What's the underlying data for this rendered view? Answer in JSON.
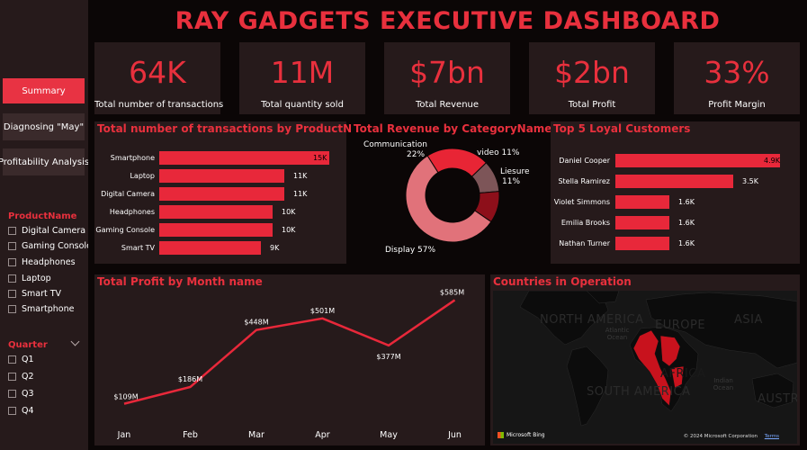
{
  "header": {
    "title": "RAY GADGETS EXECUTIVE DASHBOARD"
  },
  "nav": [
    {
      "label": "Summary",
      "active": true
    },
    {
      "label": "Diagnosing \"May\"",
      "active": false
    },
    {
      "label": "Profitability Analysis",
      "active": false
    }
  ],
  "slicers": {
    "product": {
      "title": "ProductName",
      "items": [
        "Digital Camera",
        "Gaming Console",
        "Headphones",
        "Laptop",
        "Smart TV",
        "Smartphone"
      ]
    },
    "quarter": {
      "title": "Quarter",
      "items": [
        "Q1",
        "Q2",
        "Q3",
        "Q4"
      ]
    }
  },
  "kpis": [
    {
      "value": "64K",
      "label": "Total number of transactions"
    },
    {
      "value": "11M",
      "label": "Total quantity sold"
    },
    {
      "value": "$7bn",
      "label": "Total Revenue"
    },
    {
      "value": "$2bn",
      "label": "Total Profit"
    },
    {
      "value": "33%",
      "label": "Profit Margin"
    }
  ],
  "colors": {
    "accent": "#e8303d",
    "panel": "#261a1b",
    "bar": "#e8283a"
  },
  "chart_data": [
    {
      "type": "bar",
      "orientation": "horizontal",
      "title": "Total number of transactions by ProductName",
      "categories": [
        "Smartphone",
        "Laptop",
        "Digital Camera",
        "Headphones",
        "Gaming Console",
        "Smart TV"
      ],
      "values": [
        15000,
        11000,
        11000,
        10000,
        10000,
        9000
      ],
      "data_labels": [
        "15K",
        "11K",
        "11K",
        "10K",
        "10K",
        "9K"
      ]
    },
    {
      "type": "pie",
      "style": "donut",
      "title": "Total Revenue by CategoryName",
      "slices": [
        {
          "name": "Communication",
          "label": "22%",
          "value": 22,
          "color": "#e82535"
        },
        {
          "name": "video",
          "label": "11%",
          "value": 11,
          "color": "#7d5558"
        },
        {
          "name": "Liesure",
          "label": "11%",
          "value": 11,
          "color": "#8d0f1a"
        },
        {
          "name": "Display",
          "label": "57%",
          "value": 57,
          "color": "#e1727a"
        }
      ]
    },
    {
      "type": "bar",
      "orientation": "horizontal",
      "title": "Top 5 Loyal Customers",
      "categories": [
        "Daniel Cooper",
        "Stella Ramirez",
        "Violet Simmons",
        "Emilia Brooks",
        "Nathan Turner"
      ],
      "values": [
        4900,
        3500,
        1600,
        1600,
        1600
      ],
      "data_labels": [
        "4.9K",
        "3.5K",
        "1.6K",
        "1.6K",
        "1.6K"
      ]
    },
    {
      "type": "line",
      "title": "Total Profit by Month name",
      "categories": [
        "Jan",
        "Feb",
        "Mar",
        "Apr",
        "May",
        "Jun"
      ],
      "values": [
        109,
        186,
        448,
        501,
        377,
        585
      ],
      "data_labels": [
        "$109M",
        "$186M",
        "$448M",
        "$501M",
        "$377M",
        "$585M"
      ],
      "ylim": [
        0,
        620
      ],
      "grid": false
    }
  ],
  "map": {
    "title": "Countries in Operation",
    "labels": [
      "NORTH AMERICA",
      "EUROPE",
      "ASIA",
      "SOUTH AMERICA",
      "AFRICA",
      "AUSTRA"
    ],
    "oceans": [
      "Atlantic Ocean",
      "Indian Ocean"
    ],
    "attribution": "© 2024 Microsoft Corporation",
    "terms": "Terms",
    "brand": "Microsoft Bing"
  }
}
